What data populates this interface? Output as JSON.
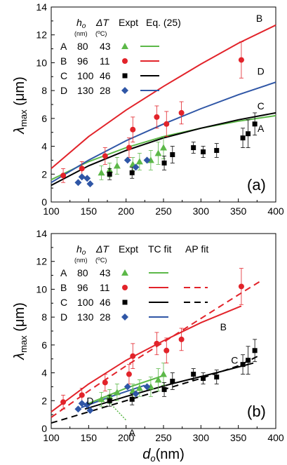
{
  "colors": {
    "A": "#5cb848",
    "B": "#e2232a",
    "C": "#000000",
    "D": "#2f56a6"
  },
  "panel_a": {
    "label": "(a)",
    "legend": {
      "headers": [
        "ho",
        "ΔT",
        "Expt",
        "Eq. (25)"
      ],
      "units": [
        "(nm)",
        "(oC)"
      ],
      "rows": [
        {
          "id": "A",
          "h": "80",
          "dt": "43"
        },
        {
          "id": "B",
          "h": "96",
          "dt": "11"
        },
        {
          "id": "C",
          "h": "100",
          "dt": "46"
        },
        {
          "id": "D",
          "h": "130",
          "dt": "28"
        }
      ]
    }
  },
  "panel_b": {
    "label": "(b)",
    "legend": {
      "headers": [
        "ho",
        "ΔT",
        "Expt",
        "TC fit",
        "AP fit"
      ],
      "units": [
        "(nm)",
        "(oC)"
      ],
      "rows": [
        {
          "id": "A",
          "h": "80",
          "dt": "43"
        },
        {
          "id": "B",
          "h": "96",
          "dt": "11"
        },
        {
          "id": "C",
          "h": "100",
          "dt": "46"
        },
        {
          "id": "D",
          "h": "130",
          "dt": "28"
        }
      ]
    }
  },
  "chart_data": [
    {
      "panel": "(a)",
      "type": "scatter",
      "xlabel": "",
      "ylabel": "λmax (μm)",
      "xlim": [
        100,
        400
      ],
      "ylim": [
        0,
        14
      ],
      "xticks": [
        100,
        150,
        200,
        250,
        300,
        350,
        400
      ],
      "yticks": [
        0,
        2,
        4,
        6,
        8,
        10,
        12,
        14
      ],
      "series": [
        {
          "name": "A",
          "kind": "expt",
          "marker": "triangle",
          "points": [
            [
              167,
              2.1,
              0.5
            ],
            [
              178,
              2.3,
              0.5
            ],
            [
              188,
              2.6,
              0.6
            ],
            [
              209,
              2.7,
              0.5
            ],
            [
              218,
              2.9,
              0.6
            ],
            [
              233,
              3.0,
              0.7
            ],
            [
              243,
              3.5,
              0.8
            ],
            [
              250,
              3.9,
              0.8
            ]
          ]
        },
        {
          "name": "B",
          "kind": "expt",
          "marker": "circle",
          "points": [
            [
              116,
              1.9,
              0.5
            ],
            [
              141,
              2.4,
              0.5
            ],
            [
              172,
              3.3,
              0.6
            ],
            [
              204,
              3.9,
              0.7
            ],
            [
              209,
              5.2,
              0.9
            ],
            [
              241,
              6.1,
              0.8
            ],
            [
              254,
              5.6,
              0.9
            ],
            [
              274,
              6.4,
              0.8
            ],
            [
              354,
              10.2,
              1.3
            ]
          ]
        },
        {
          "name": "C",
          "kind": "expt",
          "marker": "square",
          "points": [
            [
              178,
              2.0,
              0.4
            ],
            [
              208,
              2.1,
              0.4
            ],
            [
              251,
              2.8,
              0.5
            ],
            [
              262,
              3.4,
              0.6
            ],
            [
              290,
              3.9,
              0.4
            ],
            [
              303,
              3.6,
              0.4
            ],
            [
              321,
              3.7,
              0.5
            ],
            [
              356,
              4.6,
              0.7
            ],
            [
              363,
              4.9,
              1.0
            ],
            [
              372,
              5.6,
              0.8
            ]
          ]
        },
        {
          "name": "D",
          "kind": "expt",
          "marker": "diamond",
          "points": [
            [
              136,
              1.4
            ],
            [
              141,
              1.8
            ],
            [
              148,
              1.7
            ],
            [
              152,
              1.3
            ],
            [
              202,
              3.0
            ],
            [
              213,
              2.5
            ],
            [
              228,
              3.0
            ]
          ]
        },
        {
          "name": "A",
          "kind": "Eq. (25)",
          "points": [
            [
              100,
              1.6
            ],
            [
              150,
              2.9
            ],
            [
              200,
              3.9
            ],
            [
              250,
              4.7
            ],
            [
              300,
              5.3
            ],
            [
              350,
              5.8
            ],
            [
              400,
              6.2
            ]
          ]
        },
        {
          "name": "B",
          "kind": "Eq. (25)",
          "points": [
            [
              100,
              2.4
            ],
            [
              150,
              4.7
            ],
            [
              200,
              6.6
            ],
            [
              250,
              8.3
            ],
            [
              300,
              9.9
            ],
            [
              350,
              11.4
            ],
            [
              400,
              12.7
            ]
          ]
        },
        {
          "name": "C",
          "kind": "Eq. (25)",
          "points": [
            [
              100,
              1.2
            ],
            [
              150,
              2.6
            ],
            [
              200,
              3.7
            ],
            [
              250,
              4.6
            ],
            [
              300,
              5.3
            ],
            [
              350,
              5.9
            ],
            [
              400,
              6.4
            ]
          ]
        },
        {
          "name": "D",
          "kind": "Eq. (25)",
          "points": [
            [
              100,
              1.4
            ],
            [
              150,
              3.0
            ],
            [
              200,
              4.4
            ],
            [
              250,
              5.6
            ],
            [
              300,
              6.7
            ],
            [
              350,
              7.7
            ],
            [
              400,
              8.6
            ]
          ]
        }
      ],
      "curve_labels": [
        {
          "text": "A",
          "x": 380,
          "y": 5.3
        },
        {
          "text": "B",
          "x": 378,
          "y": 13.2
        },
        {
          "text": "C",
          "x": 380,
          "y": 6.9
        },
        {
          "text": "D",
          "x": 380,
          "y": 9.4
        }
      ]
    },
    {
      "panel": "(b)",
      "type": "scatter",
      "xlabel": "do(nm)",
      "ylabel": "λmax (μm)",
      "xlim": [
        100,
        400
      ],
      "ylim": [
        0,
        14
      ],
      "xticks": [
        100,
        150,
        200,
        250,
        300,
        350,
        400
      ],
      "yticks": [
        0,
        2,
        4,
        6,
        8,
        10,
        12,
        14
      ],
      "series": [
        {
          "name": "A",
          "kind": "expt",
          "marker": "triangle",
          "points": [
            [
              167,
              2.1,
              0.5
            ],
            [
              178,
              2.3,
              0.5
            ],
            [
              188,
              2.6,
              0.6
            ],
            [
              209,
              2.7,
              0.5
            ],
            [
              218,
              2.9,
              0.6
            ],
            [
              233,
              3.0,
              0.7
            ],
            [
              243,
              3.5,
              0.8
            ],
            [
              250,
              3.9,
              0.8
            ]
          ]
        },
        {
          "name": "B",
          "kind": "expt",
          "marker": "circle",
          "points": [
            [
              116,
              1.9,
              0.5
            ],
            [
              141,
              2.4,
              0.5
            ],
            [
              172,
              3.3,
              0.6
            ],
            [
              204,
              3.9,
              0.7
            ],
            [
              209,
              5.2,
              0.9
            ],
            [
              241,
              6.1,
              0.8
            ],
            [
              254,
              5.6,
              0.9
            ],
            [
              274,
              6.4,
              0.8
            ],
            [
              354,
              10.2,
              1.3
            ]
          ]
        },
        {
          "name": "C",
          "kind": "expt",
          "marker": "square",
          "points": [
            [
              178,
              2.0,
              0.4
            ],
            [
              208,
              2.1,
              0.4
            ],
            [
              251,
              2.8,
              0.5
            ],
            [
              262,
              3.4,
              0.6
            ],
            [
              290,
              3.9,
              0.4
            ],
            [
              303,
              3.6,
              0.4
            ],
            [
              321,
              3.7,
              0.5
            ],
            [
              356,
              4.6,
              0.7
            ],
            [
              363,
              4.9,
              1.0
            ],
            [
              372,
              5.6,
              0.8
            ]
          ]
        },
        {
          "name": "D",
          "kind": "expt",
          "marker": "diamond",
          "points": [
            [
              136,
              1.4
            ],
            [
              141,
              1.8
            ],
            [
              148,
              1.7
            ],
            [
              152,
              1.3
            ],
            [
              202,
              3.0
            ],
            [
              213,
              2.5
            ],
            [
              228,
              3.0
            ]
          ]
        },
        {
          "name": "A",
          "kind": "TC fit",
          "points": [
            [
              150,
              1.8
            ],
            [
              200,
              2.9
            ],
            [
              250,
              3.8
            ]
          ]
        },
        {
          "name": "B",
          "kind": "TC fit",
          "points": [
            [
              100,
              1.2
            ],
            [
              150,
              3.2
            ],
            [
              200,
              4.9
            ],
            [
              250,
              6.3
            ],
            [
              300,
              7.6
            ],
            [
              354,
              8.8
            ]
          ]
        },
        {
          "name": "C",
          "kind": "TC fit",
          "points": [
            [
              145,
              1.4
            ],
            [
              200,
              2.3
            ],
            [
              260,
              3.2
            ],
            [
              320,
              4.0
            ],
            [
              370,
              4.7
            ]
          ]
        },
        {
          "name": "D",
          "kind": "TC fit",
          "points": [
            [
              140,
              1.5
            ],
            [
              180,
              2.3
            ],
            [
              225,
              3.1
            ]
          ]
        },
        {
          "name": "A",
          "kind": "AP fit",
          "points": [
            [
              170,
              2.3
            ],
            [
              200,
              0.6
            ]
          ]
        },
        {
          "name": "B",
          "kind": "AP fit",
          "points": [
            [
              100,
              0.8
            ],
            [
              150,
              2.7
            ],
            [
              200,
              4.5
            ],
            [
              250,
              6.2
            ],
            [
              300,
              7.9
            ],
            [
              350,
              9.6
            ],
            [
              380,
              10.6
            ]
          ]
        },
        {
          "name": "C",
          "kind": "AP fit",
          "points": [
            [
              100,
              0.4
            ],
            [
              150,
              1.2
            ],
            [
              200,
              2.0
            ],
            [
              250,
              2.8
            ],
            [
              300,
              3.6
            ],
            [
              350,
              4.5
            ],
            [
              380,
              5.3
            ]
          ]
        }
      ],
      "curve_labels": [
        {
          "text": "A",
          "x": 208,
          "y": -0.3
        },
        {
          "text": "B",
          "x": 330,
          "y": 7.3
        },
        {
          "text": "C",
          "x": 345,
          "y": 4.9
        },
        {
          "text": "D",
          "x": 152,
          "y": 2.0
        }
      ]
    }
  ]
}
